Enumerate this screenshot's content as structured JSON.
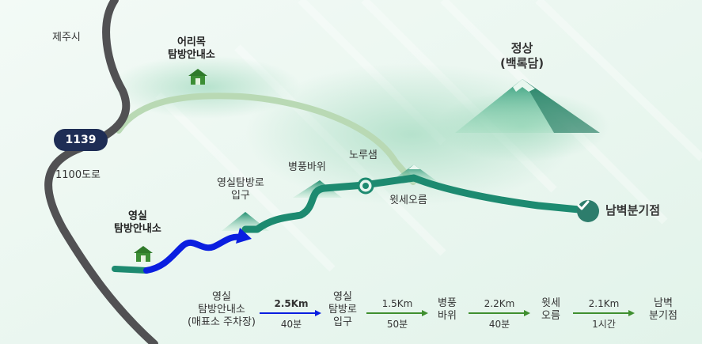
{
  "colors": {
    "road": "#515153",
    "trail_main": "#1d8a70",
    "trail_old": "#b9d9b4",
    "trail_highlight": "#0a1ee0",
    "arrow_green": "#3f8f2f",
    "badge": "#1e2d55"
  },
  "map": {
    "city_label": "제주시",
    "road_label": "1100도로",
    "road_number": "1139",
    "eorimok_label": "어리목\n탐방안내소",
    "summit_label": "정상\n(백록담)",
    "yeongsil_center_label": "영실\n탐방안내소",
    "trailhead_label": "영실탐방로\n입구",
    "byeongpung_label": "병풍바위",
    "noru_label": "노루샘",
    "witse_label": "윗세오름",
    "nambyeok_label": "남벽분기점",
    "icons": [
      "house-icon",
      "check-icon",
      "spring-icon",
      "peak-icon"
    ]
  },
  "route_legend": {
    "stops": [
      "영실\n탐방안내소\n(매표소 주차장)",
      "영실\n탐방로\n입구",
      "병풍\n바위",
      "윗세\n오름",
      "남벽\n분기점"
    ],
    "legs": [
      {
        "distance": "2.5Km",
        "time": "40분"
      },
      {
        "distance": "1.5Km",
        "time": "50분"
      },
      {
        "distance": "2.2Km",
        "time": "40분"
      },
      {
        "distance": "2.1Km",
        "time": "1시간"
      }
    ]
  }
}
